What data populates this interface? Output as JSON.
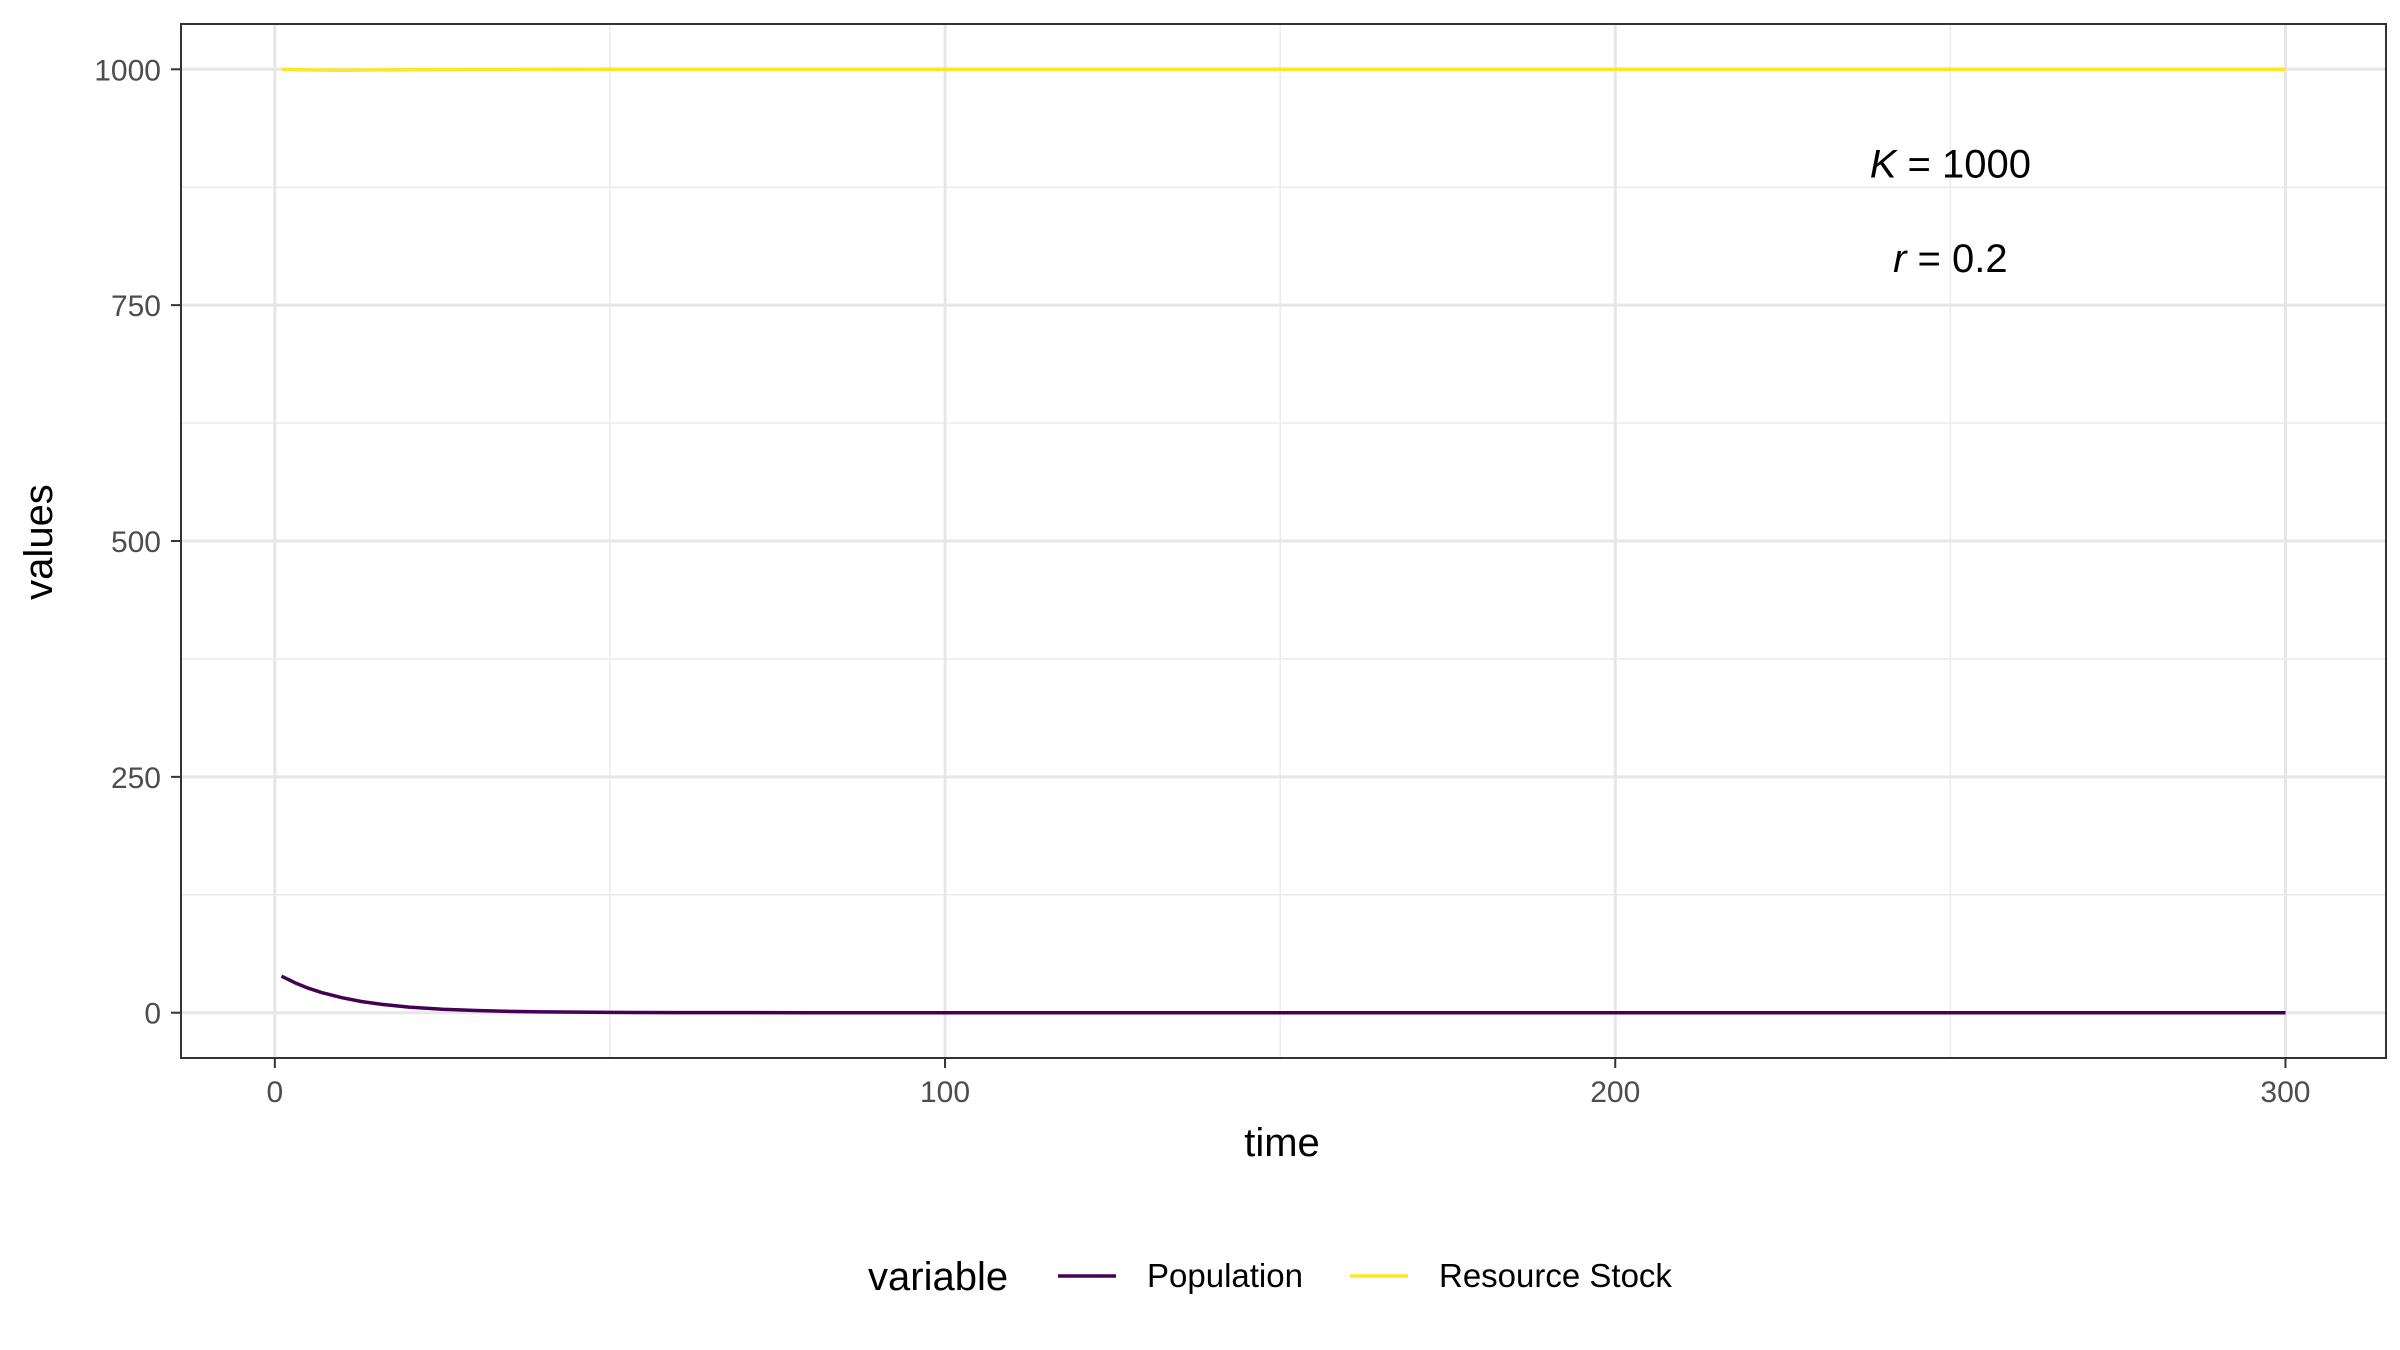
{
  "chart_data": {
    "type": "line",
    "title": "",
    "xlabel": "time",
    "ylabel": "values",
    "xlim": [
      -14,
      315
    ],
    "ylim": [
      -48,
      1048
    ],
    "x_ticks": [
      0,
      100,
      200,
      300
    ],
    "x_tick_labels": [
      "0",
      "100",
      "200",
      "300"
    ],
    "x_minor_ticks": [
      50,
      150,
      250
    ],
    "y_ticks": [
      0,
      250,
      500,
      750,
      1000
    ],
    "y_tick_labels": [
      "0",
      "250",
      "500",
      "750",
      "1000"
    ],
    "y_minor_ticks": [
      125,
      375,
      625,
      875
    ],
    "grid": true,
    "legend": {
      "position": "bottom",
      "title": "variable"
    },
    "annotations": [
      {
        "symbol": "K",
        "text": " = 1000",
        "x": 250,
        "y": 900
      },
      {
        "symbol": "r",
        "text": " = 0.2",
        "x": 250,
        "y": 800
      }
    ],
    "series": [
      {
        "name": "Population",
        "color": "#440154",
        "points": [
          [
            1,
            38.7
          ],
          [
            3,
            31.8
          ],
          [
            5,
            26.0
          ],
          [
            7,
            21.3
          ],
          [
            10,
            15.9
          ],
          [
            13,
            11.8
          ],
          [
            16,
            8.8
          ],
          [
            20,
            6.0
          ],
          [
            25,
            3.7
          ],
          [
            30,
            2.3
          ],
          [
            35,
            1.4
          ],
          [
            40,
            0.9
          ],
          [
            50,
            0.3
          ],
          [
            60,
            0.1
          ],
          [
            80,
            0.0
          ],
          [
            100,
            0.0
          ],
          [
            150,
            0.0
          ],
          [
            200,
            0.0
          ],
          [
            250,
            0.0
          ],
          [
            300,
            0.0
          ]
        ]
      },
      {
        "name": "Resource Stock",
        "color": "#fde725",
        "points": [
          [
            1,
            1000
          ],
          [
            5,
            999.2
          ],
          [
            10,
            999.0
          ],
          [
            15,
            999.2
          ],
          [
            20,
            999.5
          ],
          [
            30,
            999.8
          ],
          [
            50,
            1000
          ],
          [
            100,
            1000
          ],
          [
            150,
            1000
          ],
          [
            200,
            1000
          ],
          [
            250,
            1000
          ],
          [
            300,
            1000
          ]
        ]
      }
    ]
  }
}
